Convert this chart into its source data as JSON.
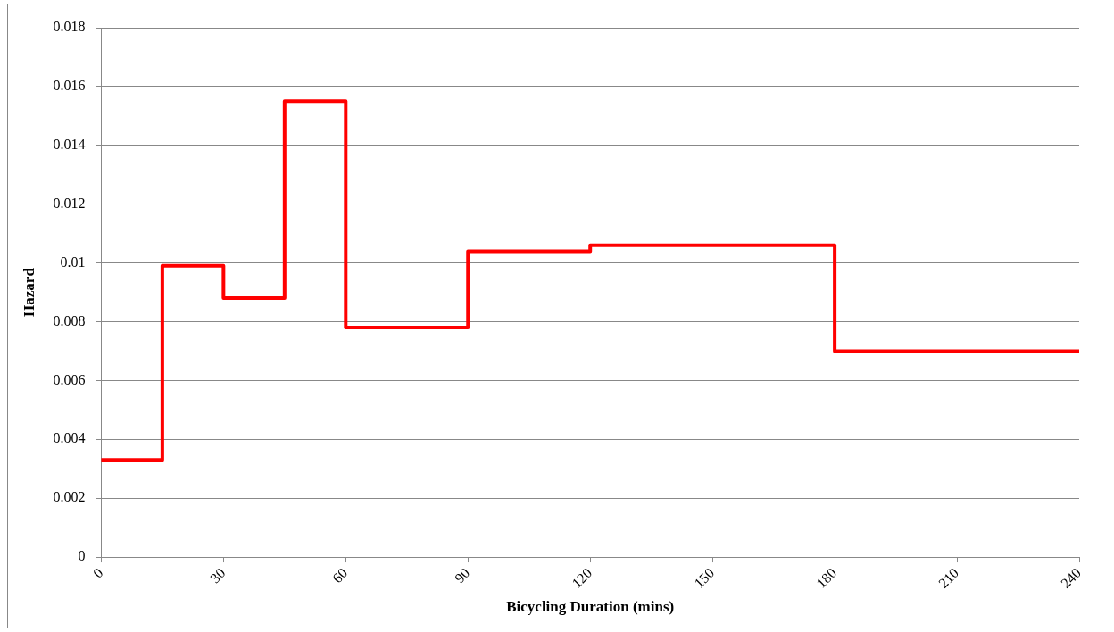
{
  "chart_data": {
    "type": "step",
    "xlabel": "Bicycling Duration (mins)",
    "ylabel": "Hazard",
    "x": [
      0,
      15,
      30,
      45,
      60,
      90,
      120,
      180,
      240
    ],
    "series": [
      {
        "color": "#ff0000",
        "values": [
          0.0033,
          0.0099,
          0.0088,
          0.0155,
          0.0078,
          0.0104,
          0.0106,
          0.007,
          0.007
        ]
      }
    ],
    "xlim": [
      0,
      240
    ],
    "xticks": [
      0,
      30,
      60,
      90,
      120,
      150,
      180,
      210,
      240
    ],
    "ylim": [
      0,
      0.018
    ],
    "yticks": [
      0,
      0.002,
      0.004,
      0.006,
      0.008,
      0.01,
      0.012,
      0.014,
      0.016,
      0.018
    ],
    "grid": "y",
    "legend": false,
    "marker": "none",
    "line_style": "solid"
  }
}
